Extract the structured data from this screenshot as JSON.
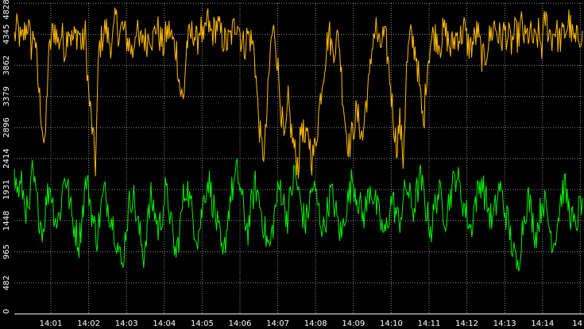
{
  "chart_data": {
    "type": "line",
    "background": "#000000",
    "grid": true,
    "title": "",
    "xlabel": "",
    "ylabel": "",
    "ylim": [
      0,
      4828
    ],
    "y_ticks": [
      0,
      482,
      965,
      1448,
      1931,
      2414,
      2896,
      3379,
      3862,
      4345,
      4828
    ],
    "x_ticks": [
      "14:01",
      "14:02",
      "14:03",
      "14:04",
      "14:05",
      "14:06",
      "14:07",
      "14:08",
      "14:09",
      "14:10",
      "14:11",
      "14:12",
      "14:13",
      "14:14",
      "14"
    ],
    "x_range_minutes": [
      14.0,
      15.0
    ],
    "series": [
      {
        "color": "#ffbb00",
        "samples_per_point": 1,
        "values": [
          4300,
          4450,
          4200,
          4380,
          4520,
          4150,
          4400,
          3600,
          3100,
          2500,
          3900,
          4300,
          4450,
          4200,
          4350,
          4100,
          4500,
          4250,
          4300,
          4400,
          4150,
          4350,
          3400,
          2900,
          2300,
          4100,
          4300,
          4450,
          4250,
          4200,
          4600,
          4350,
          4450,
          4300,
          4200,
          4050,
          4500,
          4150,
          4350,
          4200,
          4400,
          4250,
          4500,
          4300,
          4150,
          4350,
          4400,
          4200,
          4100,
          3500,
          3300,
          4200,
          4300,
          4400,
          4200,
          4500,
          4150,
          4600,
          4350,
          4400,
          4500,
          4350,
          4250,
          4200,
          4300,
          4450,
          4600,
          4300,
          4150,
          4350,
          4250,
          4100,
          3200,
          2600,
          2500,
          3400,
          4300,
          4400,
          3800,
          3100,
          2600,
          3300,
          2800,
          2500,
          2300,
          3000,
          2600,
          2800,
          2400,
          2600,
          3100,
          3600,
          4000,
          4400,
          4100,
          4200,
          4300,
          3500,
          2900,
          2600,
          2800,
          3100,
          3000,
          2700,
          3300,
          3600,
          4300,
          4450,
          4100,
          4300,
          4200,
          3700,
          3100,
          2600,
          3000,
          2400,
          3800,
          4300,
          4200,
          4000,
          3400,
          2900,
          3800,
          4200,
          4350,
          4300,
          4200,
          4400,
          4300,
          4100,
          4250,
          4350,
          4300,
          4450,
          4200,
          4150,
          4250,
          4400,
          4050,
          3900,
          4200,
          4350,
          4500,
          4350,
          4250,
          4400,
          4300,
          4200,
          4350,
          4300,
          4500,
          4250,
          4350,
          4300,
          4200,
          4350,
          4150,
          4600,
          4400,
          4300,
          4450,
          4250,
          4300,
          4400,
          4550,
          4300,
          4200,
          4350,
          4400
        ]
      },
      {
        "color": "#00ee00",
        "samples_per_point": 1,
        "values": [
          2100,
          1900,
          2000,
          1700,
          1500,
          2200,
          1850,
          1500,
          1300,
          1800,
          2000,
          1600,
          1400,
          1700,
          2200,
          1900,
          1500,
          1300,
          1100,
          1600,
          2100,
          1800,
          1400,
          1200,
          1600,
          1900,
          1700,
          1500,
          1300,
          1000,
          700,
          1300,
          1700,
          1900,
          1500,
          1200,
          900,
          1400,
          1800,
          1600,
          1300,
          1500,
          1900,
          1700,
          1200,
          900,
          1300,
          1800,
          2000,
          1700,
          1400,
          1200,
          1500,
          1900,
          2100,
          1800,
          1500,
          1200,
          800,
          1300,
          1800,
          2000,
          2200,
          1900,
          1500,
          1300,
          1700,
          2000,
          1800,
          1500,
          1200,
          1000,
          1400,
          1800,
          2000,
          1700,
          1500,
          1900,
          2200,
          1900,
          1600,
          1400,
          1700,
          2000,
          1800,
          1500,
          1300,
          1600,
          1900,
          1700,
          1400,
          1200,
          1600,
          1800,
          2100,
          1900,
          1700,
          1500,
          1700,
          2000,
          1800,
          1600,
          1400,
          1200,
          1500,
          1800,
          1600,
          1400,
          1700,
          2000,
          1800,
          1600,
          1900,
          2100,
          1800,
          1500,
          1300,
          1700,
          1900,
          1700,
          1500,
          1800,
          2000,
          2200,
          1900,
          1700,
          1500,
          1300,
          1700,
          1900,
          2100,
          1800,
          1600,
          1400,
          1700,
          2000,
          1700,
          1500,
          1200,
          900,
          700,
          1200,
          1600,
          1800,
          1500,
          1200,
          1500,
          1800,
          1600,
          1300,
          1100,
          1400,
          1800,
          2000,
          1700,
          1500,
          1300,
          1600,
          1800
        ]
      }
    ]
  }
}
